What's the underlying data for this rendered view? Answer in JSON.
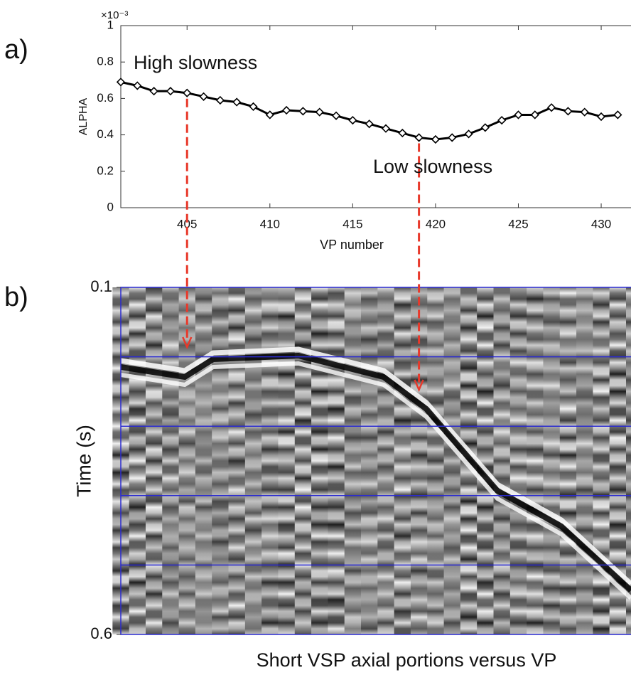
{
  "chart_data": [
    {
      "type": "line",
      "panel_label": "a)",
      "ylabel": "ALPHA",
      "xlabel": "VP number",
      "multiplier": "×10⁻³",
      "x": [
        401,
        402,
        403,
        404,
        405,
        406,
        407,
        408,
        409,
        410,
        411,
        412,
        413,
        414,
        415,
        416,
        417,
        418,
        419,
        420,
        421,
        422,
        423,
        424,
        425,
        426,
        427,
        428,
        429,
        430,
        431
      ],
      "values": [
        0.69,
        0.67,
        0.64,
        0.64,
        0.63,
        0.61,
        0.59,
        0.58,
        0.555,
        0.51,
        0.535,
        0.53,
        0.525,
        0.505,
        0.48,
        0.46,
        0.435,
        0.41,
        0.385,
        0.375,
        0.385,
        0.405,
        0.44,
        0.48,
        0.51,
        0.51,
        0.55,
        0.53,
        0.525,
        0.5,
        0.51
      ],
      "color": "#000000",
      "xlim": [
        401,
        431.8
      ],
      "ylim": [
        0,
        1
      ],
      "xticks": [
        405,
        410,
        415,
        420,
        425,
        430
      ],
      "yticks": [
        0,
        0.2,
        0.4,
        0.6,
        0.8,
        1
      ],
      "annotations": [
        {
          "text": "High slowness",
          "x": 405
        },
        {
          "text": "Low slowness",
          "x": 419
        }
      ],
      "arrow_color": "#e8392b"
    },
    {
      "type": "image",
      "panel_label": "b)",
      "ylabel": "Time (s)",
      "title": "Short VSP axial portions versus VP",
      "ylim": [
        0.1,
        0.6
      ],
      "yticks": [
        0.1,
        0.6
      ],
      "gridlines": [
        0.2,
        0.3,
        0.4,
        0.5
      ],
      "grid_color": "#2b2bd0"
    }
  ]
}
